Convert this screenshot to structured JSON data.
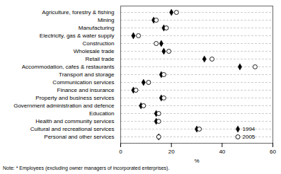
{
  "chart_data": {
    "type": "dot",
    "categories": [
      "Agriculture, forestry & fishing",
      "Mining",
      "Manufacturing",
      "Electricity, gas & water supply",
      "Construction",
      "Wholesale trade",
      "Retail trade",
      "Accommodation, cafes & restaurants",
      "Transport and storage",
      "Communication services",
      "Finance and insurance",
      "Property and business services",
      "Government administration and defence",
      "Education",
      "Health and community services",
      "Cultural and recreational services",
      "Personal and other services"
    ],
    "series": [
      {
        "name": "1994",
        "color": "black",
        "marker": "diamond",
        "values": [
          20,
          13,
          17,
          5,
          16,
          17,
          33,
          47,
          16,
          9,
          5,
          16,
          8,
          14,
          14,
          30,
          15
        ]
      },
      {
        "name": "2005",
        "color": "black",
        "marker": "open_circle",
        "values": [
          22,
          14,
          18,
          7,
          14,
          19,
          36,
          53,
          17,
          11,
          6,
          17,
          9,
          15,
          15,
          31,
          15
        ]
      }
    ],
    "xlabel": "%",
    "xlim": [
      0,
      60
    ],
    "xticks": [
      0,
      20,
      40,
      60
    ],
    "grid": true,
    "legend": "lower right",
    "annotations": [
      "Note:  *  Employees (excluding owner managers of incorporated enterprises)."
    ]
  }
}
